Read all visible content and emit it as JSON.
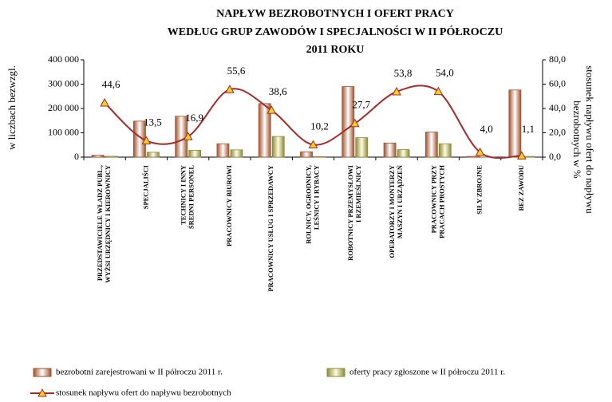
{
  "chart_data": {
    "type": "bar",
    "title": [
      "NAPŁYW BEZROBOTNYCH I OFERT PRACY",
      "WEDŁUG GRUP ZAWODÓW I SPECJALNOŚCI W II PÓŁROCZU",
      "2011 ROKU"
    ],
    "ylabel": "w liczbach bezwzgl.",
    "y2label": [
      "stosunek napływu ofert do napływu",
      "bezrobotnych w %"
    ],
    "categories": [
      "PRZEDSTAWICIELE WŁADZ PUBL., WYŻSI URZĘDNICY I KIEROWNICY",
      "SPECJALIŚCI",
      "TECHNICY I INNY ŚREDNI PERSONEL",
      "PRACOWNICY BIUROWI",
      "PRACOWNICY USŁUG I SPRZEDAWCY",
      "ROLNICY, OGRODNICY, LEŚNICY I RYBACY",
      "ROBOTNICY PRZEMYSŁOWI I RZEMIEŚLNICY",
      "OPERATORZY I MONTERZY MASZYN I URZĄDZEŃ",
      "PRACOWNICY PRZY PRACACH PROSTYCH",
      "SIŁY ZBROJNE",
      "BEZ ZAWODU"
    ],
    "series": [
      {
        "name": "bezrobotni zarejestrowani w II półroczu 2011 r.",
        "color": "#a0522d",
        "values": [
          8000,
          148000,
          168000,
          55000,
          220000,
          22000,
          290000,
          58000,
          103000,
          3000,
          276000
        ]
      },
      {
        "name": "oferty pracy zgłoszone w II półroczu 2011 r.",
        "color": "#8b8b3a",
        "values": [
          3500,
          20000,
          28000,
          30000,
          85000,
          2200,
          80000,
          31000,
          55000,
          120,
          3000
        ]
      },
      {
        "name": "stosunek napływu ofert do napływu bezrobotnych",
        "type": "line",
        "axis": "y2",
        "color": "#a52a2a",
        "marker_color": "#f5d020",
        "values": [
          44.6,
          13.5,
          16.9,
          55.6,
          38.6,
          10.2,
          27.7,
          53.8,
          54.0,
          4.0,
          1.1
        ],
        "value_labels": [
          "44,6",
          "13,5",
          "16,9",
          "55,6",
          "38,6",
          "10,2",
          "27,7",
          "53,8",
          "54,0",
          "4,0",
          "1,1"
        ]
      }
    ],
    "ylim": [
      0,
      400000
    ],
    "yticks": [
      0,
      {
        "value": 100000,
        "label": "100 000"
      },
      {
        "value": 200000,
        "label": "200 000"
      },
      {
        "value": 300000,
        "label": "300 000"
      },
      {
        "value": 400000,
        "label": "400 000"
      }
    ],
    "y2lim": [
      0,
      80
    ],
    "y2ticks": [
      {
        "value": 0,
        "label": "0,0"
      },
      {
        "value": 20,
        "label": "20,0"
      },
      {
        "value": 40,
        "label": "40,0"
      },
      {
        "value": 60,
        "label": "60,0"
      },
      {
        "value": 80,
        "label": "80,0"
      }
    ]
  }
}
